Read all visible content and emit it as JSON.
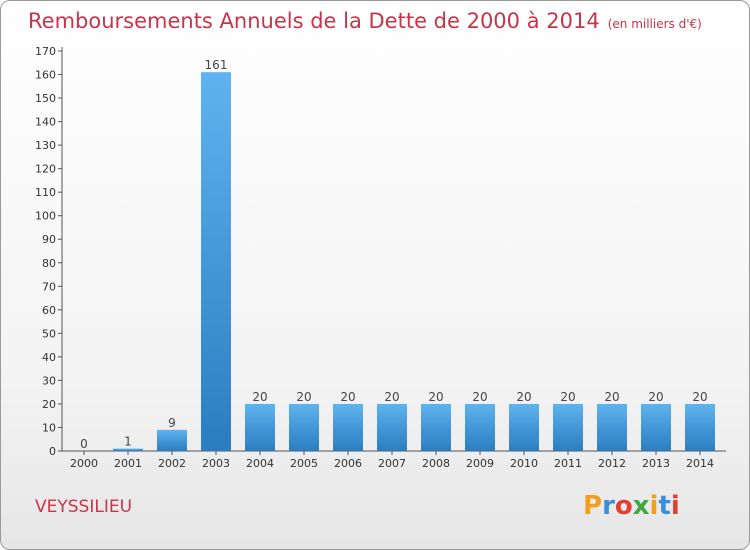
{
  "header": {
    "title": "Remboursements Annuels de la Dette de 2000 à 2014",
    "unit": "(en milliers d'€)"
  },
  "footer": {
    "location": "VEYSSILIEU",
    "logo": "Proxiti"
  },
  "colors": {
    "title": "#c8344a",
    "bar_top": "#5fb3ee",
    "bar_bottom": "#2a7dc0"
  },
  "chart_data": {
    "type": "bar",
    "title": "Remboursements Annuels de la Dette de 2000 à 2014",
    "xlabel": "",
    "ylabel": "",
    "categories": [
      "2000",
      "2001",
      "2002",
      "2003",
      "2004",
      "2005",
      "2006",
      "2007",
      "2008",
      "2009",
      "2010",
      "2011",
      "2012",
      "2013",
      "2014"
    ],
    "values": [
      0,
      1,
      9,
      161,
      20,
      20,
      20,
      20,
      20,
      20,
      20,
      20,
      20,
      20,
      20
    ],
    "ylim": [
      0,
      170
    ],
    "ytick_step": 10,
    "grid": false,
    "legend": "none"
  }
}
